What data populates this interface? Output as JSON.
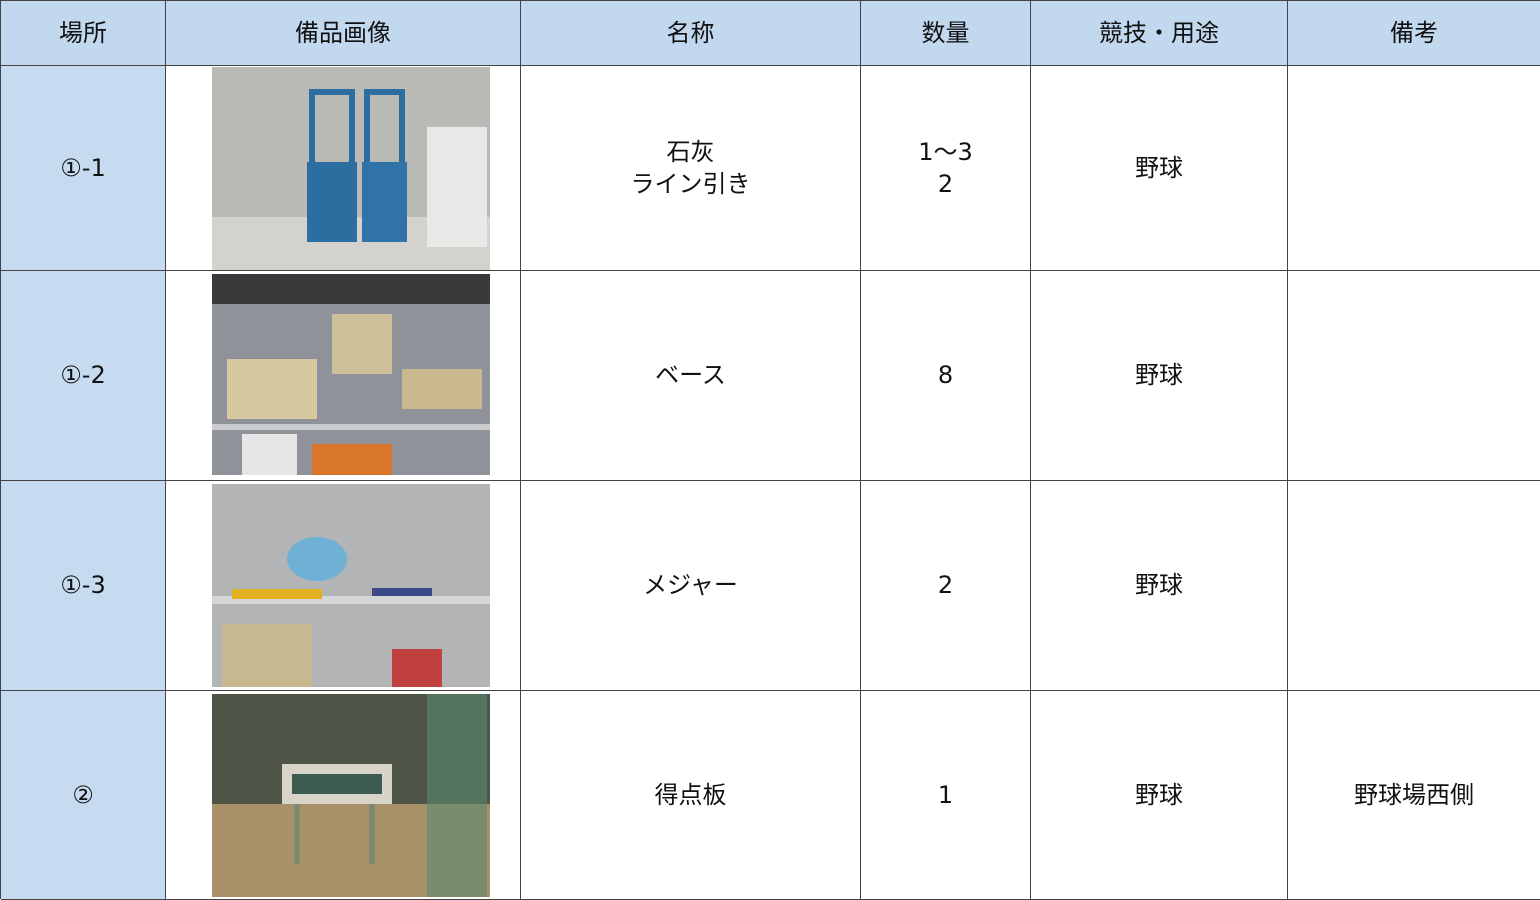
{
  "table": {
    "header": [
      "場所",
      "備品画像",
      "名称",
      "数量",
      "競技・用途",
      "備考"
    ],
    "rows": [
      {
        "place": "①-1",
        "name": [
          "石灰",
          "ライン引き"
        ],
        "quantity": [
          "1～3",
          "2"
        ],
        "use": "野球"
      },
      {
        "place": "①-2",
        "name": [
          "ベース"
        ],
        "quantity": [
          "8"
        ],
        "use": "野球"
      },
      {
        "place": "①-3",
        "name": [
          "メジャー"
        ],
        "quantity": [
          "2"
        ],
        "use": "野球"
      },
      {
        "place": "②",
        "name": [
          "得点板"
        ],
        "quantity": [
          "1"
        ],
        "use": "野球",
        "note": "野球場西側"
      }
    ]
  }
}
